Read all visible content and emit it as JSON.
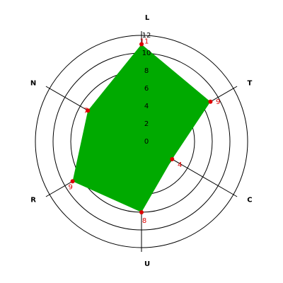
{
  "chart_data": {
    "type": "radar",
    "categories": [
      "L",
      "T",
      "C",
      "U",
      "R",
      "N"
    ],
    "values": [
      11,
      9,
      4,
      8,
      9,
      7
    ],
    "color": "#00aa00",
    "marker_color": "#dd0000",
    "rlim": [
      0,
      12
    ],
    "rticks": [
      0,
      2,
      4,
      6,
      8,
      10,
      12
    ],
    "grid": true
  }
}
